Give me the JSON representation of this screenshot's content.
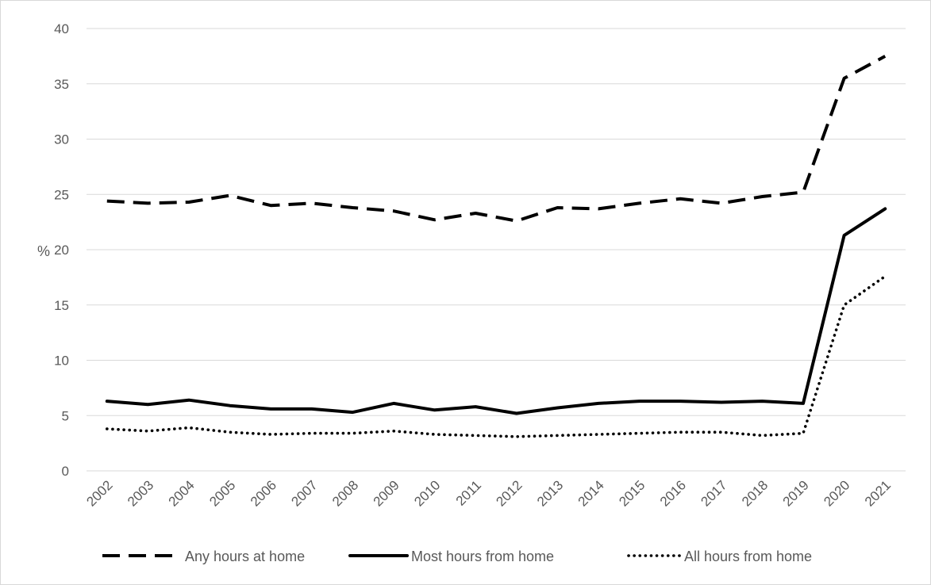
{
  "chart_data": {
    "type": "line",
    "ylabel": "%",
    "ylim": [
      0,
      40
    ],
    "yticks": [
      0,
      5,
      10,
      15,
      20,
      25,
      30,
      35,
      40
    ],
    "grid": "horizontal",
    "legend_position": "bottom",
    "categories": [
      "2002",
      "2003",
      "2004",
      "2005",
      "2006",
      "2007",
      "2008",
      "2009",
      "2010",
      "2011",
      "2012",
      "2013",
      "2014",
      "2015",
      "2016",
      "2017",
      "2018",
      "2019",
      "2020",
      "2021"
    ],
    "series": [
      {
        "name": "Any hours at home",
        "style": "dashed",
        "color": "#000000",
        "values": [
          24.4,
          24.2,
          24.3,
          24.9,
          24.0,
          24.2,
          23.8,
          23.5,
          22.7,
          23.3,
          22.6,
          23.8,
          23.7,
          24.2,
          24.6,
          24.2,
          24.8,
          25.2,
          35.5,
          37.5
        ]
      },
      {
        "name": "Most hours from home",
        "style": "solid",
        "color": "#000000",
        "values": [
          6.3,
          6.0,
          6.4,
          5.9,
          5.6,
          5.6,
          5.3,
          6.1,
          5.5,
          5.8,
          5.2,
          5.7,
          6.1,
          6.3,
          6.3,
          6.2,
          6.3,
          6.1,
          21.3,
          23.7
        ]
      },
      {
        "name": "All hours from home",
        "style": "dotted",
        "color": "#000000",
        "values": [
          3.8,
          3.6,
          3.9,
          3.5,
          3.3,
          3.4,
          3.4,
          3.6,
          3.3,
          3.2,
          3.1,
          3.2,
          3.3,
          3.4,
          3.5,
          3.5,
          3.2,
          3.4,
          15.0,
          17.6
        ]
      }
    ]
  }
}
